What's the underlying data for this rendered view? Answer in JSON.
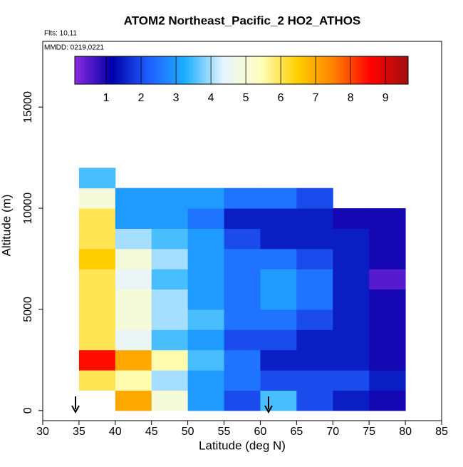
{
  "chart_data": {
    "type": "heatmap",
    "title": "ATOM2 Northeast_Pacific_2 HO2_ATHOS",
    "subtitle": "Flts: 10,11",
    "annotation": "MMDD: 0219,0221",
    "x_label": "Latitude (deg N)",
    "y_label": "Altitude (m)",
    "xlim": [
      30,
      85
    ],
    "xticks": [
      30,
      35,
      40,
      45,
      50,
      55,
      60,
      65,
      70,
      75,
      80,
      85
    ],
    "ylim": [
      -500,
      18250
    ],
    "yticks": [
      0,
      5000,
      10000,
      15000
    ],
    "x_edges": [
      35,
      40,
      45,
      50,
      55,
      60,
      65,
      70,
      75,
      80
    ],
    "y_edges": [
      0,
      1000,
      2000,
      3000,
      4000,
      5000,
      6000,
      7000,
      8000,
      9000,
      10000,
      11000,
      12000
    ],
    "z": [
      [
        null,
        7,
        5,
        3,
        2,
        3.5,
        2,
        1.5,
        1
      ],
      [
        6,
        5.5,
        4,
        3,
        2.5,
        2,
        2,
        2,
        1.5
      ],
      [
        8.5,
        7,
        5.5,
        3.5,
        2.5,
        1.5,
        1.5,
        1.5,
        1
      ],
      [
        6,
        4.5,
        3.5,
        3,
        2,
        2,
        1.5,
        1.5,
        1
      ],
      [
        6,
        5,
        4,
        3.5,
        2.5,
        2.5,
        2,
        1.5,
        1
      ],
      [
        6,
        5,
        4,
        3,
        2.5,
        3,
        2.5,
        1.5,
        1
      ],
      [
        6,
        4.5,
        3.5,
        3,
        2.5,
        3,
        2.5,
        1.5,
        0.5
      ],
      [
        6.5,
        5,
        4,
        3,
        2.5,
        2.5,
        2,
        1.5,
        1
      ],
      [
        6,
        4,
        3.5,
        3,
        2,
        1.5,
        1.5,
        1.5,
        1
      ],
      [
        6,
        3,
        3,
        2.5,
        1.5,
        1.5,
        1.5,
        1,
        1
      ],
      [
        5,
        3,
        3,
        3,
        2.5,
        2.5,
        2,
        null,
        null
      ],
      [
        3.5,
        null,
        null,
        null,
        null,
        null,
        null,
        null,
        null
      ]
    ],
    "clim": [
      0.1,
      9.65
    ],
    "colorbar_ticks": [
      1,
      2,
      3,
      4,
      5,
      6,
      7,
      8,
      9
    ],
    "colormap": [
      "#8a2be2",
      "#0000a8",
      "#1f5fff",
      "#1fb0ff",
      "#e6f4ff",
      "#ffffc0",
      "#ffd000",
      "#ff8000",
      "#ff0000",
      "#a01010"
    ]
  }
}
